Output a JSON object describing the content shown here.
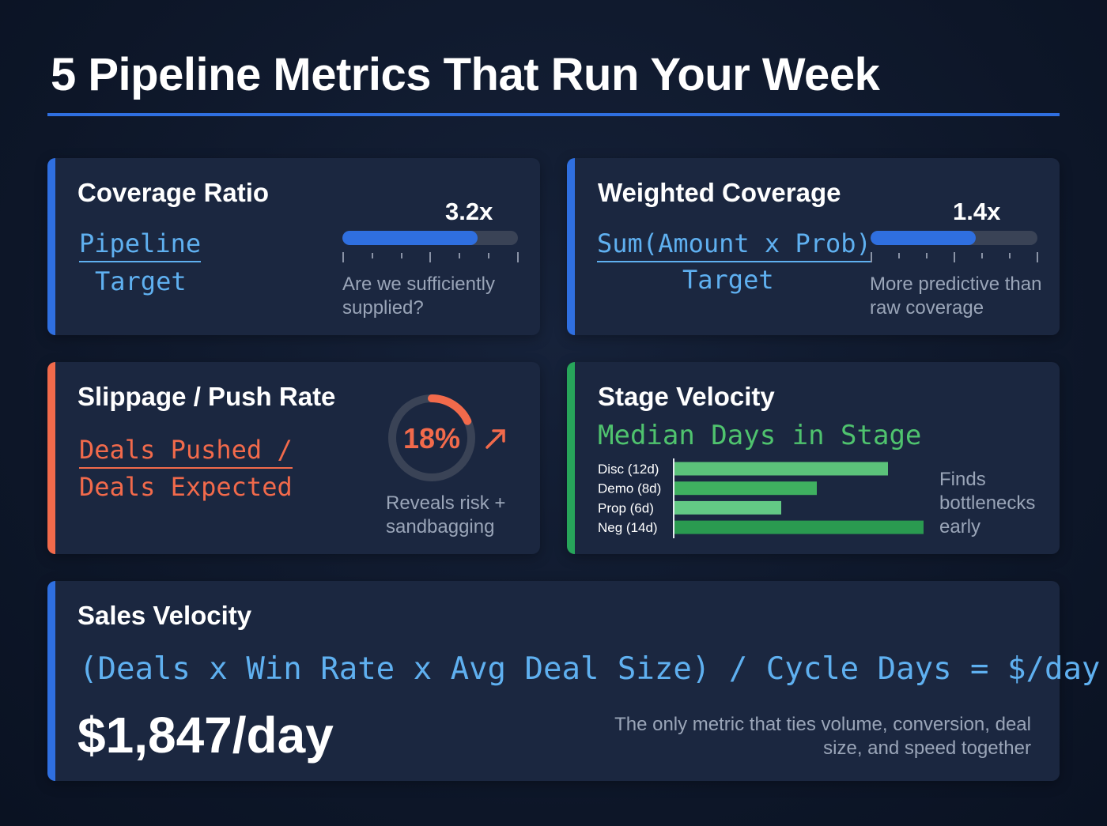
{
  "header": {
    "title": "5 Pipeline Metrics That Run Your Week"
  },
  "cards": [
    {
      "title": "Coverage Ratio",
      "numerator": "Pipeline",
      "denominator": "Target",
      "metric": "3.2x",
      "fill_percent": 77,
      "note": "Are we sufficiently supplied?"
    },
    {
      "title": "Weighted Coverage",
      "numerator": "Sum(Amount x Prob)",
      "denominator": "Target",
      "metric": "1.4x",
      "fill_percent": 63,
      "note": "More predictive than raw coverage"
    },
    {
      "title": "Slippage / Push Rate",
      "numerator": "Deals Pushed /",
      "denominator": "Deals Expected",
      "metric": {
        "value": 18,
        "label": "18%"
      },
      "note": "Reveals risk + sandbagging"
    },
    {
      "title": "Stage Velocity",
      "subtitle": "Median Days in Stage",
      "bars": [
        {
          "label": "Disc (12d)",
          "days": 12
        },
        {
          "label": "Demo (8d)",
          "days": 8
        },
        {
          "label": "Prop (6d)",
          "days": 6
        },
        {
          "label": "Neg (14d)",
          "days": 14
        }
      ],
      "note": "Finds bottlenecks early"
    },
    {
      "title": "Sales Velocity",
      "formula": "(Deals x Win Rate x Avg Deal Size) / Cycle Days = $/day",
      "result": "$1,847/day",
      "note": "The only metric that ties volume, conversion, deal size, and speed together"
    }
  ]
}
